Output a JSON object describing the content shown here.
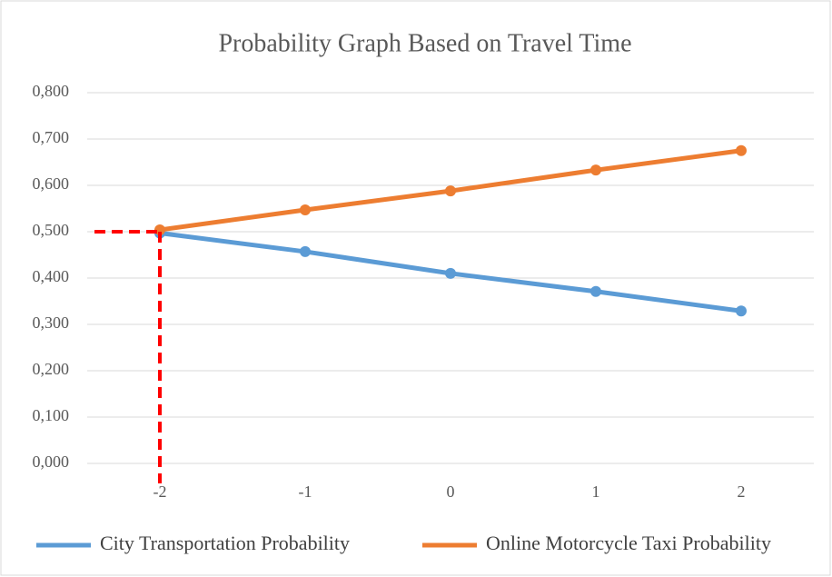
{
  "chart_data": {
    "type": "line",
    "title": "Probability Graph Based on Travel Time",
    "categories": [
      "-2",
      "-1",
      "0",
      "1",
      "2"
    ],
    "series": [
      {
        "name": "City Transportation Probability",
        "color": "#5b9bd5",
        "values": [
          0.497,
          0.457,
          0.41,
          0.371,
          0.329
        ]
      },
      {
        "name": "Online Motorcycle Taxi Probability",
        "color": "#ed7d31",
        "values": [
          0.504,
          0.547,
          0.588,
          0.633,
          0.675
        ]
      }
    ],
    "ylim": [
      0,
      0.8
    ],
    "yticks": [
      {
        "value": 0,
        "label": "0,000"
      },
      {
        "value": 0.1,
        "label": "0,100"
      },
      {
        "value": 0.2,
        "label": "0,200"
      },
      {
        "value": 0.3,
        "label": "0,300"
      },
      {
        "value": 0.4,
        "label": "0,400"
      },
      {
        "value": 0.5,
        "label": "0,500"
      },
      {
        "value": 0.6,
        "label": "0,600"
      },
      {
        "value": 0.7,
        "label": "0,700"
      },
      {
        "value": 0.8,
        "label": "0,800"
      }
    ],
    "grid": true,
    "legend": "bottom",
    "reference": {
      "category_index": 0,
      "y": 0.5,
      "color": "#ff0000"
    }
  }
}
